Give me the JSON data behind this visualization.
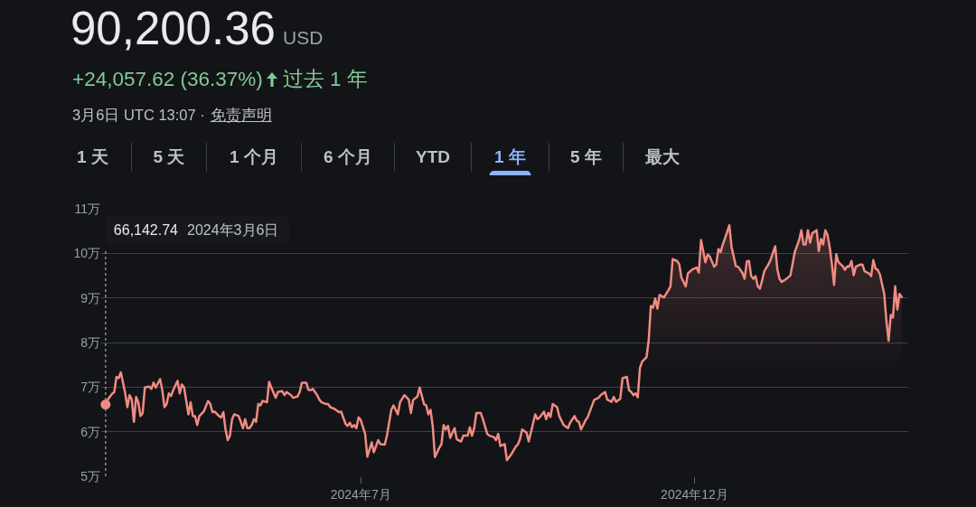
{
  "chart_data": {
    "type": "area",
    "title": "90,200.36",
    "subtitle": "+24,057.62 (36.37%)",
    "annotations": [
      "USD",
      "过去 1 年",
      "3月6日 UTC 13:07 ·",
      "免责声明",
      "1 天",
      "5 天",
      "1 个月",
      "6 个月",
      "YTD",
      "1 年",
      "5 年",
      "最大",
      "66,142.74",
      "2024年3月6日"
    ],
    "x": [
      "2024-03-06",
      "2024-03-07",
      "2024-03-09",
      "2024-03-10",
      "2024-03-11",
      "2024-03-12",
      "2024-03-13",
      "2024-03-14",
      "2024-03-15",
      "2024-03-16",
      "2024-03-17",
      "2024-03-18",
      "2024-03-19",
      "2024-03-20",
      "2024-03-21",
      "2024-03-22",
      "2024-03-23",
      "2024-03-24",
      "2024-03-26",
      "2024-03-27",
      "2024-03-28",
      "2024-03-29",
      "2024-03-31",
      "2024-04-01",
      "2024-04-02",
      "2024-04-03",
      "2024-04-04",
      "2024-04-05",
      "2024-04-06",
      "2024-04-08",
      "2024-04-09",
      "2024-04-10",
      "2024-04-11",
      "2024-04-13",
      "2024-04-14",
      "2024-04-15",
      "2024-04-16",
      "2024-04-17",
      "2024-04-18",
      "2024-04-20",
      "2024-04-22",
      "2024-04-23",
      "2024-04-24",
      "2024-04-25",
      "2024-04-27",
      "2024-04-28",
      "2024-04-29",
      "2024-04-30",
      "2024-05-01",
      "2024-05-02",
      "2024-05-03",
      "2024-05-04",
      "2024-05-06",
      "2024-05-07",
      "2024-05-08",
      "2024-05-09",
      "2024-05-10",
      "2024-05-11",
      "2024-05-12",
      "2024-05-13",
      "2024-05-14",
      "2024-05-15",
      "2024-05-16",
      "2024-05-17",
      "2024-05-19",
      "2024-05-20",
      "2024-05-21",
      "2024-05-23",
      "2024-05-24",
      "2024-05-26",
      "2024-05-27",
      "2024-05-28",
      "2024-05-30",
      "2024-05-31",
      "2024-06-02",
      "2024-06-03",
      "2024-06-04",
      "2024-06-06",
      "2024-06-07",
      "2024-06-08",
      "2024-06-09",
      "2024-06-11",
      "2024-06-12",
      "2024-06-13",
      "2024-06-15",
      "2024-06-16",
      "2024-06-17",
      "2024-06-19",
      "2024-06-21",
      "2024-06-22",
      "2024-06-24",
      "2024-06-25",
      "2024-06-26",
      "2024-06-27",
      "2024-06-28",
      "2024-06-29",
      "2024-06-30",
      "2024-07-01",
      "2024-07-03",
      "2024-07-04",
      "2024-07-06",
      "2024-07-07",
      "2024-07-09",
      "2024-07-10",
      "2024-07-12",
      "2024-07-13",
      "2024-07-15",
      "2024-07-16",
      "2024-07-18",
      "2024-07-19",
      "2024-07-21",
      "2024-07-23",
      "2024-07-24",
      "2024-07-25",
      "2024-07-27",
      "2024-07-28",
      "2024-07-30",
      "2024-07-31",
      "2024-08-01",
      "2024-08-02",
      "2024-08-03",
      "2024-08-04",
      "2024-08-06",
      "2024-08-07",
      "2024-08-08",
      "2024-08-09",
      "2024-08-10",
      "2024-08-11",
      "2024-08-13",
      "2024-08-14",
      "2024-08-16",
      "2024-08-17",
      "2024-08-19",
      "2024-08-20",
      "2024-08-21",
      "2024-08-22",
      "2024-08-23",
      "2024-08-25",
      "2024-08-26",
      "2024-08-28",
      "2024-08-29",
      "2024-08-31",
      "2024-09-01",
      "2024-09-02",
      "2024-09-03",
      "2024-09-05",
      "2024-09-06",
      "2024-09-08",
      "2024-09-10",
      "2024-09-11",
      "2024-09-12",
      "2024-09-13",
      "2024-09-15",
      "2024-09-16",
      "2024-09-19",
      "2024-09-20",
      "2024-09-21",
      "2024-09-23",
      "2024-09-24",
      "2024-09-25",
      "2024-09-26",
      "2024-09-27",
      "2024-09-29",
      "2024-09-30",
      "2024-10-02",
      "2024-10-04",
      "2024-10-05",
      "2024-10-07",
      "2024-10-08",
      "2024-10-09",
      "2024-10-10",
      "2024-10-12",
      "2024-10-13",
      "2024-10-16",
      "2024-10-18",
      "2024-10-19",
      "2024-10-21",
      "2024-10-22",
      "2024-10-24",
      "2024-10-25",
      "2024-10-26",
      "2024-10-28",
      "2024-10-29",
      "2024-10-31",
      "2024-11-01",
      "2024-11-02",
      "2024-11-03",
      "2024-11-04",
      "2024-11-05",
      "2024-11-06",
      "2024-11-07",
      "2024-11-09",
      "2024-11-10",
      "2024-11-11",
      "2024-11-12",
      "2024-11-13",
      "2024-11-14",
      "2024-11-15",
      "2024-11-17",
      "2024-11-19",
      "2024-11-20",
      "2024-11-21",
      "2024-11-23",
      "2024-11-24",
      "2024-11-25",
      "2024-11-27",
      "2024-11-28",
      "2024-11-30",
      "2024-12-02",
      "2024-12-03",
      "2024-12-04",
      "2024-12-06",
      "2024-12-07",
      "2024-12-08",
      "2024-12-10",
      "2024-12-11",
      "2024-12-12",
      "2024-12-13",
      "2024-12-14",
      "2024-12-15",
      "2024-12-17",
      "2024-12-18",
      "2024-12-20",
      "2024-12-21",
      "2024-12-23",
      "2024-12-24",
      "2024-12-25",
      "2024-12-26",
      "2024-12-27",
      "2024-12-28",
      "2024-12-29",
      "2024-12-30",
      "2024-12-31",
      "2025-01-01",
      "2025-01-02",
      "2025-01-04",
      "2025-01-05",
      "2025-01-07",
      "2025-01-08",
      "2025-01-09",
      "2025-01-10",
      "2025-01-11",
      "2025-01-13",
      "2025-01-14",
      "2025-01-16",
      "2025-01-18",
      "2025-01-19",
      "2025-01-20",
      "2025-01-21",
      "2025-01-22",
      "2025-01-23",
      "2025-01-24",
      "2025-01-26",
      "2025-01-27",
      "2025-01-28",
      "2025-01-29",
      "2025-01-30",
      "2025-01-31",
      "2025-02-01",
      "2025-02-02",
      "2025-02-03",
      "2025-02-04",
      "2025-02-05",
      "2025-02-07",
      "2025-02-08",
      "2025-02-09",
      "2025-02-10",
      "2025-02-11",
      "2025-02-12",
      "2025-02-13",
      "2025-02-15",
      "2025-02-16",
      "2025-02-17",
      "2025-02-19",
      "2025-02-20",
      "2025-02-21",
      "2025-02-22",
      "2025-02-23",
      "2025-02-24",
      "2025-02-26",
      "2025-02-27",
      "2025-02-28",
      "2025-03-01",
      "2025-03-02",
      "2025-03-03",
      "2025-03-04",
      "2025-03-05",
      "2025-03-06"
    ],
    "series": [
      {
        "color": "#f28b82",
        "values": [
          6.61,
          6.72,
          6.85,
          6.89,
          7.23,
          7.2,
          7.33,
          7.1,
          6.86,
          6.55,
          6.82,
          6.72,
          6.22,
          6.78,
          6.66,
          6.35,
          6.42,
          6.99,
          7.01,
          6.96,
          7.1,
          6.99,
          7.18,
          6.93,
          6.55,
          6.62,
          6.86,
          6.8,
          6.93,
          7.14,
          6.86,
          7.06,
          6.99,
          6.39,
          6.66,
          6.35,
          6.35,
          6.15,
          6.35,
          6.45,
          6.69,
          6.62,
          6.44,
          6.45,
          6.35,
          6.32,
          6.44,
          6.05,
          5.81,
          5.91,
          6.28,
          6.39,
          6.35,
          6.22,
          6.08,
          6.28,
          6.08,
          6.08,
          6.15,
          6.28,
          6.22,
          6.62,
          6.59,
          6.69,
          6.66,
          7.12,
          6.99,
          6.76,
          6.89,
          6.91,
          6.82,
          6.89,
          6.82,
          6.76,
          6.79,
          6.89,
          7.1,
          7.1,
          6.94,
          6.93,
          6.96,
          6.82,
          6.72,
          6.66,
          6.62,
          6.62,
          6.55,
          6.51,
          6.44,
          6.45,
          6.18,
          6.13,
          6.2,
          6.1,
          6.15,
          6.08,
          6.32,
          6.26,
          5.95,
          5.44,
          5.76,
          5.54,
          5.81,
          5.72,
          5.71,
          5.91,
          6.49,
          6.59,
          6.39,
          6.66,
          6.82,
          6.72,
          6.42,
          6.71,
          6.79,
          6.99,
          6.62,
          6.59,
          6.39,
          6.49,
          6.12,
          5.43,
          5.64,
          5.72,
          6.15,
          6.05,
          6.13,
          5.86,
          6.08,
          5.83,
          5.78,
          5.91,
          5.91,
          6.1,
          5.91,
          6.08,
          6.42,
          6.42,
          6.28,
          5.95,
          5.91,
          5.88,
          5.81,
          5.95,
          5.68,
          5.72,
          5.36,
          5.49,
          5.66,
          5.71,
          5.83,
          6.05,
          5.98,
          5.78,
          6.39,
          6.28,
          6.32,
          6.45,
          6.28,
          6.42,
          6.33,
          6.62,
          6.55,
          6.35,
          6.15,
          6.08,
          6.2,
          6.35,
          6.25,
          6.22,
          6.05,
          6.25,
          6.32,
          6.71,
          6.76,
          6.82,
          6.89,
          6.72,
          6.67,
          6.78,
          6.67,
          6.74,
          7.2,
          7.23,
          6.93,
          6.89,
          6.82,
          6.86,
          6.77,
          7.43,
          7.57,
          7.67,
          8.04,
          8.82,
          8.78,
          8.99,
          8.76,
          9.07,
          9.01,
          9.17,
          9.26,
          9.87,
          9.83,
          9.76,
          9.46,
          9.26,
          9.55,
          9.64,
          9.68,
          9.57,
          10.3,
          9.8,
          9.97,
          9.93,
          9.7,
          9.75,
          10.1,
          10.03,
          10.2,
          10.34,
          10.63,
          10.14,
          9.71,
          9.7,
          9.56,
          9.43,
          9.82,
          9.83,
          9.49,
          9.43,
          9.49,
          9.26,
          9.21,
          9.39,
          9.6,
          9.76,
          9.87,
          10.16,
          9.64,
          9.43,
          9.36,
          9.39,
          9.46,
          9.51,
          10.03,
          10.3,
          10.52,
          10.2,
          10.2,
          10.52,
          10.24,
          10.45,
          10.52,
          10.05,
          10.32,
          10.2,
          10.52,
          10.41,
          10.14,
          9.76,
          9.29,
          9.98,
          9.8,
          9.71,
          9.63,
          9.71,
          9.7,
          9.83,
          9.51,
          9.7,
          9.75,
          9.75,
          9.6,
          9.55,
          9.49,
          9.85,
          9.66,
          9.63,
          9.53,
          9.09,
          8.48,
          8.04,
          8.62,
          8.56,
          9.26,
          8.74,
          9.09,
          9.02
        ]
      },
      {
        "type": "scatter",
        "color": "#f28b82",
        "x": [
          "2024-03-06"
        ],
        "values": [
          6.61
        ]
      }
    ],
    "xlim": [
      "2024-03-04",
      "2025-03-09"
    ],
    "xticks": [
      {
        "value": "2024-07-01",
        "label": "2024年7月"
      },
      {
        "value": "2024-12-01",
        "label": "2024年12月"
      }
    ],
    "ylim": [
      5,
      11
    ],
    "yticks": [
      {
        "value": 5,
        "label": "5万"
      },
      {
        "value": 6,
        "label": "6万"
      },
      {
        "value": 7,
        "label": "7万"
      },
      {
        "value": 8,
        "label": "8万"
      },
      {
        "value": 9,
        "label": "9万"
      },
      {
        "value": 10,
        "label": "10万"
      },
      {
        "value": 11,
        "label": "11万"
      }
    ],
    "ref_lines": [
      {
        "axis": "x",
        "value": "2024-03-06",
        "line_style": "dotted",
        "color": "#9aa0a6"
      }
    ],
    "grid": "y"
  }
}
